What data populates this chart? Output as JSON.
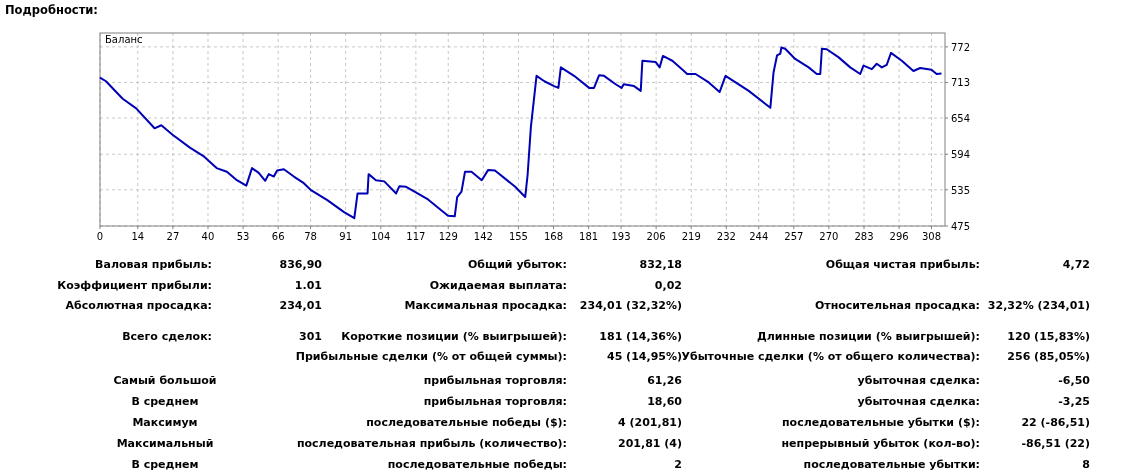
{
  "chart_data": [
    {
      "type": "line",
      "title": "Подробности:",
      "legend": "top left",
      "grid": true,
      "xlim": [
        0,
        313
      ],
      "ylim": [
        475,
        795
      ],
      "xticks": [
        0,
        14,
        27,
        40,
        53,
        66,
        78,
        91,
        104,
        117,
        129,
        142,
        155,
        168,
        181,
        193,
        206,
        219,
        232,
        244,
        257,
        270,
        283,
        296,
        308
      ],
      "yticks": [
        475,
        535,
        594,
        654,
        713,
        772
      ],
      "series": [
        {
          "name": "Баланс",
          "color": "#0000b4",
          "x": [
            0,
            2.2,
            8.4,
            13.4,
            20.2,
            22.7,
            27,
            33.3,
            38.3,
            43.2,
            47,
            50.7,
            54.2,
            56.3,
            58.8,
            61.2,
            62.5,
            64.4,
            65.6,
            68.1,
            71.8,
            75.5,
            78,
            84.2,
            90.4,
            94.2,
            95.4,
            99.1,
            99.5,
            102.2,
            105.3,
            109.7,
            110.9,
            113.4,
            116.5,
            121.5,
            128.9,
            131.4,
            132.3,
            133.9,
            135.2,
            137.6,
            141.4,
            143.8,
            146.3,
            153.8,
            157.5,
            158.4,
            159.6,
            161.7,
            164.6,
            168.2,
            169.8,
            170.7,
            175.6,
            181.2,
            183,
            184.9,
            186.7,
            191,
            193.2,
            194,
            197.8,
            200.3,
            200.9,
            205.8,
            207.3,
            208.5,
            212,
            216.3,
            217.5,
            220.6,
            225.5,
            229.5,
            231.7,
            240.3,
            248.3,
            249.5,
            250.8,
            252,
            252.4,
            253.8,
            257.5,
            262.5,
            265.5,
            266.8,
            267.4,
            269.2,
            273.5,
            277.9,
            281.6,
            282.8,
            285.9,
            287.7,
            289.6,
            291.4,
            293,
            297,
            301.3,
            303.8,
            308,
            309.9,
            311.7
          ],
          "values": [
            721,
            715,
            686,
            670,
            637,
            642,
            626,
            605,
            591,
            571,
            565,
            551,
            542,
            571,
            563,
            550,
            561,
            557,
            567,
            569,
            557,
            546,
            535,
            518,
            498,
            488,
            529,
            529,
            561,
            551,
            549,
            529,
            541,
            540,
            532,
            519,
            492,
            491,
            523,
            532,
            565,
            565,
            551,
            568,
            567,
            540,
            523,
            560,
            639,
            724,
            715,
            707,
            704,
            738,
            724,
            704,
            704,
            725,
            724,
            710,
            704,
            710,
            707,
            699,
            749,
            747,
            738,
            757,
            749,
            732,
            727,
            727,
            713,
            697,
            724,
            699,
            671,
            730,
            758,
            761,
            771,
            769,
            752,
            738,
            727,
            727,
            769,
            768,
            755,
            738,
            727,
            741,
            735,
            744,
            738,
            742,
            762,
            749,
            732,
            737,
            734,
            727,
            728
          ]
        }
      ]
    },
    {
      "type": "other",
      "annotations": [
        "Валовая прибыль:",
        "836,90",
        "Общий убыток:",
        "832,18",
        "Общая чистая прибыль:",
        "4,72",
        "Коэффициент прибыли:",
        "1.01",
        "Ожидаемая выплата:",
        "0,02",
        "Абсолютная просадка:",
        "234,01",
        "Максимальная просадка:",
        "234,01 (32,32%)",
        "Относительная просадка:",
        "32,32% (234,01)",
        "Всего сделок:",
        "301",
        "Короткие позиции (% выигрышей):",
        "181 (14,36%)",
        "Длинные позиции (% выигрышей):",
        "120 (15,83%)",
        "Прибыльные сделки (% от общей суммы):",
        "45 (14,95%)",
        "Убыточные сделки (% от общего количества):",
        "256 (85,05%)",
        "Самый большой",
        "прибыльная торговля:",
        "61,26",
        "убыточная сделка:",
        "-6,50",
        "В среднем",
        "прибыльная торговля:",
        "18,60",
        "убыточная сделка:",
        "-3,25",
        "Максимум",
        "последовательные победы ($):",
        "4 (201,81)",
        "последовательные убытки ($):",
        "22 (-86,51)",
        "Максимальный",
        "последовательная прибыль (количество):",
        "201,81 (4)",
        "непрерывный убыток (кол-во):",
        "-86,51 (22)",
        "В среднем",
        "последовательные победы:",
        "2",
        "последовательные убытки:",
        "8"
      ]
    }
  ]
}
